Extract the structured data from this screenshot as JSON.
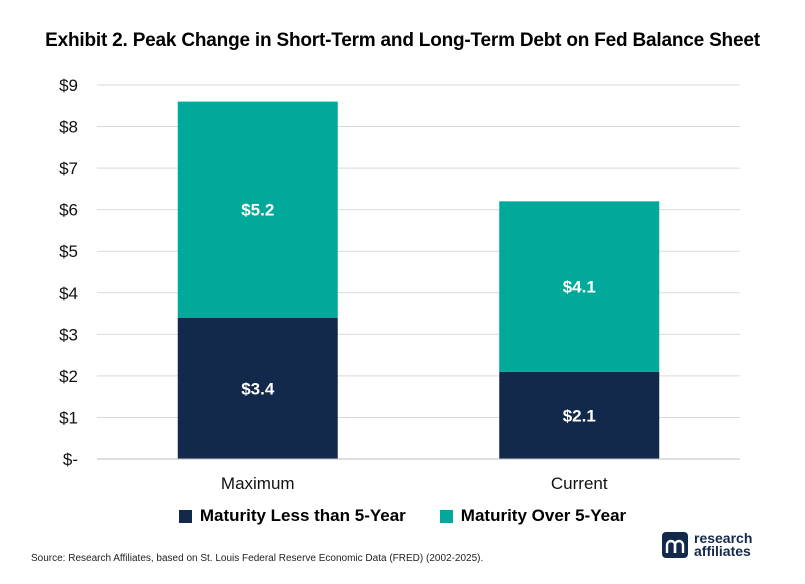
{
  "title": "Exhibit 2. Peak Change in Short-Term and Long-Term Debt on Fed Balance Sheet",
  "legend": [
    {
      "label": "Maturity Less than 5-Year",
      "color": "#13294b"
    },
    {
      "label": "Maturity Over 5-Year",
      "color": "#00a99a"
    }
  ],
  "source": "Source: Research Affiliates, based on St. Louis Federal Reserve Economic Data (FRED) (2002-2025).",
  "logo": {
    "line1": "research",
    "line2": "affiliates",
    "icon": "research-affiliates-logo-icon"
  },
  "chart_data": {
    "type": "bar",
    "stacked": true,
    "categories": [
      "Maximum",
      "Current"
    ],
    "series": [
      {
        "name": "Maturity Less than 5-Year",
        "values": [
          3.4,
          2.1
        ],
        "labels": [
          "$3.4",
          "$2.1"
        ],
        "color": "#13294b"
      },
      {
        "name": "Maturity Over 5-Year",
        "values": [
          5.2,
          4.1
        ],
        "labels": [
          "$5.2",
          "$4.1"
        ],
        "color": "#00a99a"
      }
    ],
    "yticks": [
      0,
      1,
      2,
      3,
      4,
      5,
      6,
      7,
      8,
      9
    ],
    "ytick_labels": [
      "$-",
      "$1",
      "$2",
      "$3",
      "$4",
      "$5",
      "$6",
      "$7",
      "$8",
      "$9"
    ],
    "ylim": [
      0,
      9
    ],
    "grid": true,
    "legend_position": "bottom"
  }
}
